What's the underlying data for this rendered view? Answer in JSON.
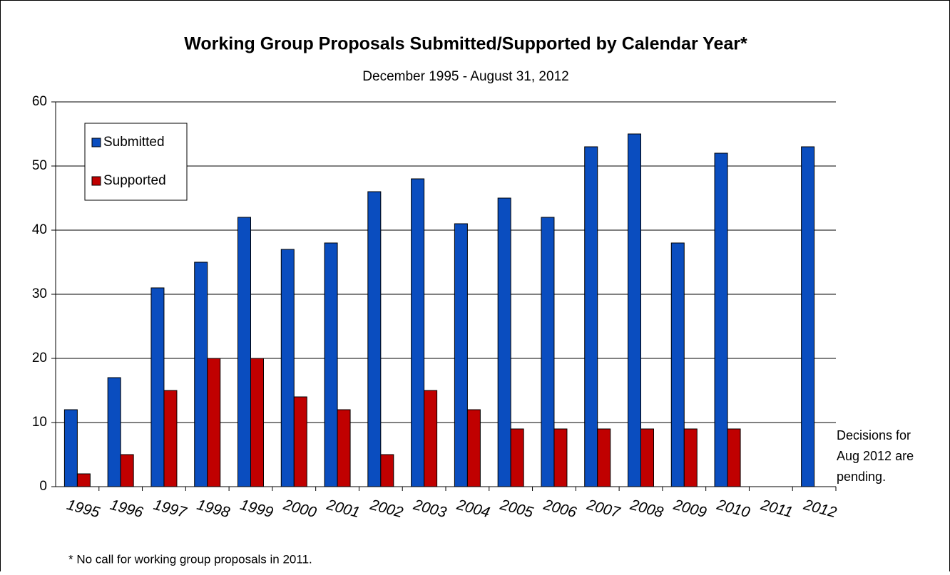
{
  "chart_data": {
    "type": "bar",
    "title": "Working Group Proposals Submitted/Supported by Calendar Year*",
    "subtitle": "December 1995 - August 31, 2012",
    "categories": [
      "1995",
      "1996",
      "1997",
      "1998",
      "1999",
      "2000",
      "2001",
      "2002",
      "2003",
      "2004",
      "2005",
      "2006",
      "2007",
      "2008",
      "2009",
      "2010",
      "2011",
      "2012"
    ],
    "series": [
      {
        "name": "Submitted",
        "color": "#0a4dbf",
        "values": [
          12,
          17,
          31,
          35,
          42,
          37,
          38,
          46,
          48,
          41,
          45,
          42,
          53,
          55,
          38,
          52,
          null,
          53
        ]
      },
      {
        "name": "Supported",
        "color": "#c00000",
        "values": [
          2,
          5,
          15,
          20,
          20,
          14,
          12,
          5,
          15,
          12,
          9,
          9,
          9,
          9,
          9,
          9,
          null,
          null
        ]
      }
    ],
    "ylim": [
      0,
      60
    ],
    "yticks": [
      0,
      10,
      20,
      30,
      40,
      50,
      60
    ],
    "grid": true,
    "annotation": [
      "Decisions for",
      "Aug 2012 are",
      "pending."
    ],
    "footnote": "*  No call for working group proposals  in 2011."
  }
}
